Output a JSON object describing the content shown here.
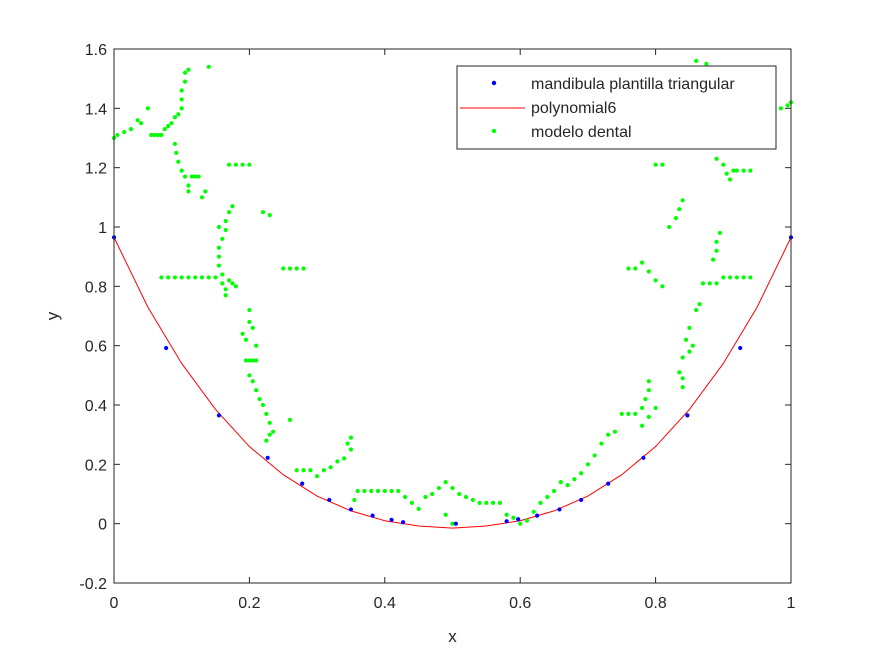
{
  "chart_data": {
    "type": "scatter",
    "xlabel": "x",
    "ylabel": "y",
    "xlim": [
      0,
      1
    ],
    "ylim": [
      -0.2,
      1.6
    ],
    "xticks": [
      0,
      0.2,
      0.4,
      0.6,
      0.8,
      1
    ],
    "yticks": [
      -0.2,
      0,
      0.2,
      0.4,
      0.6,
      0.8,
      1,
      1.2,
      1.4,
      1.6
    ],
    "xtick_labels": [
      "0",
      "0.2",
      "0.4",
      "0.6",
      "0.8",
      "1"
    ],
    "ytick_labels": [
      "-0.2",
      "0",
      "0.2",
      "0.4",
      "0.6",
      "0.8",
      "1",
      "1.2",
      "1.4",
      "1.6"
    ],
    "grid": false,
    "legend_position": "top-right",
    "series": [
      {
        "name": "mandibula plantilla triangular",
        "kind": "points",
        "color": "#0000ff",
        "points": [
          [
            0.0,
            0.965
          ],
          [
            0.077,
            0.592
          ],
          [
            0.155,
            0.365
          ],
          [
            0.227,
            0.222
          ],
          [
            0.278,
            0.135
          ],
          [
            0.318,
            0.08
          ],
          [
            0.35,
            0.048
          ],
          [
            0.382,
            0.027
          ],
          [
            0.41,
            0.013
          ],
          [
            0.427,
            0.005
          ],
          [
            0.505,
            0.0
          ],
          [
            0.58,
            0.008
          ],
          [
            0.597,
            0.015
          ],
          [
            0.625,
            0.027
          ],
          [
            0.658,
            0.048
          ],
          [
            0.69,
            0.08
          ],
          [
            0.73,
            0.135
          ],
          [
            0.782,
            0.222
          ],
          [
            0.847,
            0.365
          ],
          [
            0.925,
            0.592
          ],
          [
            1.0,
            0.965
          ]
        ]
      },
      {
        "name": "polynomial6",
        "kind": "line",
        "color": "#ff0000",
        "points": [
          [
            0.0,
            0.965
          ],
          [
            0.05,
            0.73
          ],
          [
            0.1,
            0.54
          ],
          [
            0.15,
            0.385
          ],
          [
            0.2,
            0.26
          ],
          [
            0.25,
            0.165
          ],
          [
            0.3,
            0.093
          ],
          [
            0.35,
            0.043
          ],
          [
            0.4,
            0.01
          ],
          [
            0.45,
            -0.008
          ],
          [
            0.5,
            -0.015
          ],
          [
            0.55,
            -0.008
          ],
          [
            0.6,
            0.01
          ],
          [
            0.65,
            0.043
          ],
          [
            0.7,
            0.093
          ],
          [
            0.75,
            0.165
          ],
          [
            0.8,
            0.26
          ],
          [
            0.85,
            0.385
          ],
          [
            0.9,
            0.54
          ],
          [
            0.95,
            0.73
          ],
          [
            1.0,
            0.965
          ]
        ]
      },
      {
        "name": "modelo dental",
        "kind": "points",
        "color": "#00ff00",
        "points": [
          [
            0.0,
            1.3
          ],
          [
            0.005,
            1.31
          ],
          [
            0.015,
            1.32
          ],
          [
            0.025,
            1.33
          ],
          [
            0.035,
            1.36
          ],
          [
            0.04,
            1.35
          ],
          [
            0.05,
            1.4
          ],
          [
            0.055,
            1.31
          ],
          [
            0.06,
            1.31
          ],
          [
            0.065,
            1.31
          ],
          [
            0.07,
            1.31
          ],
          [
            0.075,
            1.33
          ],
          [
            0.08,
            1.34
          ],
          [
            0.085,
            1.35
          ],
          [
            0.09,
            1.37
          ],
          [
            0.095,
            1.38
          ],
          [
            0.1,
            1.4
          ],
          [
            0.1,
            1.43
          ],
          [
            0.1,
            1.46
          ],
          [
            0.105,
            1.49
          ],
          [
            0.105,
            1.52
          ],
          [
            0.11,
            1.53
          ],
          [
            0.09,
            1.28
          ],
          [
            0.092,
            1.25
          ],
          [
            0.095,
            1.22
          ],
          [
            0.1,
            1.19
          ],
          [
            0.105,
            1.17
          ],
          [
            0.11,
            1.14
          ],
          [
            0.11,
            1.12
          ],
          [
            0.115,
            1.17
          ],
          [
            0.12,
            1.17
          ],
          [
            0.125,
            1.17
          ],
          [
            0.13,
            1.1
          ],
          [
            0.135,
            1.12
          ],
          [
            0.14,
            1.54
          ],
          [
            0.07,
            0.83
          ],
          [
            0.08,
            0.83
          ],
          [
            0.09,
            0.83
          ],
          [
            0.1,
            0.83
          ],
          [
            0.11,
            0.83
          ],
          [
            0.12,
            0.83
          ],
          [
            0.13,
            0.83
          ],
          [
            0.14,
            0.83
          ],
          [
            0.15,
            0.83
          ],
          [
            0.16,
            0.84
          ],
          [
            0.155,
            0.87
          ],
          [
            0.16,
            0.81
          ],
          [
            0.165,
            0.79
          ],
          [
            0.165,
            0.77
          ],
          [
            0.17,
            0.82
          ],
          [
            0.175,
            0.81
          ],
          [
            0.18,
            0.8
          ],
          [
            0.155,
            0.9
          ],
          [
            0.155,
            0.93
          ],
          [
            0.16,
            0.96
          ],
          [
            0.165,
            0.99
          ],
          [
            0.165,
            1.02
          ],
          [
            0.17,
            1.05
          ],
          [
            0.175,
            1.07
          ],
          [
            0.155,
            1.0
          ],
          [
            0.17,
            1.21
          ],
          [
            0.18,
            1.21
          ],
          [
            0.19,
            1.21
          ],
          [
            0.2,
            1.21
          ],
          [
            0.22,
            1.05
          ],
          [
            0.23,
            1.04
          ],
          [
            0.25,
            0.86
          ],
          [
            0.26,
            0.86
          ],
          [
            0.27,
            0.86
          ],
          [
            0.28,
            0.86
          ],
          [
            0.19,
            0.64
          ],
          [
            0.195,
            0.62
          ],
          [
            0.2,
            0.68
          ],
          [
            0.2,
            0.72
          ],
          [
            0.205,
            0.66
          ],
          [
            0.21,
            0.6
          ],
          [
            0.195,
            0.55
          ],
          [
            0.2,
            0.55
          ],
          [
            0.205,
            0.55
          ],
          [
            0.21,
            0.55
          ],
          [
            0.2,
            0.5
          ],
          [
            0.205,
            0.48
          ],
          [
            0.21,
            0.45
          ],
          [
            0.215,
            0.42
          ],
          [
            0.22,
            0.4
          ],
          [
            0.225,
            0.37
          ],
          [
            0.23,
            0.34
          ],
          [
            0.235,
            0.31
          ],
          [
            0.225,
            0.28
          ],
          [
            0.23,
            0.3
          ],
          [
            0.26,
            0.35
          ],
          [
            0.27,
            0.18
          ],
          [
            0.28,
            0.18
          ],
          [
            0.29,
            0.18
          ],
          [
            0.3,
            0.16
          ],
          [
            0.31,
            0.18
          ],
          [
            0.32,
            0.19
          ],
          [
            0.33,
            0.21
          ],
          [
            0.34,
            0.22
          ],
          [
            0.345,
            0.27
          ],
          [
            0.35,
            0.29
          ],
          [
            0.35,
            0.25
          ],
          [
            0.355,
            0.08
          ],
          [
            0.36,
            0.11
          ],
          [
            0.37,
            0.11
          ],
          [
            0.38,
            0.11
          ],
          [
            0.39,
            0.11
          ],
          [
            0.4,
            0.11
          ],
          [
            0.41,
            0.11
          ],
          [
            0.42,
            0.11
          ],
          [
            0.43,
            0.09
          ],
          [
            0.44,
            0.07
          ],
          [
            0.45,
            0.05
          ],
          [
            0.46,
            0.09
          ],
          [
            0.47,
            0.1
          ],
          [
            0.48,
            0.12
          ],
          [
            0.49,
            0.14
          ],
          [
            0.5,
            0.12
          ],
          [
            0.51,
            0.1
          ],
          [
            0.52,
            0.09
          ],
          [
            0.53,
            0.08
          ],
          [
            0.54,
            0.07
          ],
          [
            0.55,
            0.07
          ],
          [
            0.56,
            0.07
          ],
          [
            0.57,
            0.07
          ],
          [
            0.49,
            0.03
          ],
          [
            0.5,
            0.0
          ],
          [
            0.58,
            0.03
          ],
          [
            0.59,
            0.02
          ],
          [
            0.6,
            0.0
          ],
          [
            0.61,
            0.01
          ],
          [
            0.62,
            0.04
          ],
          [
            0.63,
            0.07
          ],
          [
            0.64,
            0.09
          ],
          [
            0.65,
            0.11
          ],
          [
            0.66,
            0.14
          ],
          [
            0.67,
            0.13
          ],
          [
            0.68,
            0.15
          ],
          [
            0.69,
            0.17
          ],
          [
            0.7,
            0.2
          ],
          [
            0.71,
            0.23
          ],
          [
            0.72,
            0.27
          ],
          [
            0.73,
            0.3
          ],
          [
            0.74,
            0.31
          ],
          [
            0.75,
            0.37
          ],
          [
            0.76,
            0.37
          ],
          [
            0.77,
            0.37
          ],
          [
            0.78,
            0.39
          ],
          [
            0.785,
            0.42
          ],
          [
            0.79,
            0.45
          ],
          [
            0.79,
            0.48
          ],
          [
            0.78,
            0.33
          ],
          [
            0.79,
            0.36
          ],
          [
            0.8,
            0.39
          ],
          [
            0.84,
            0.56
          ],
          [
            0.85,
            0.58
          ],
          [
            0.845,
            0.62
          ],
          [
            0.85,
            0.66
          ],
          [
            0.855,
            0.6
          ],
          [
            0.835,
            0.51
          ],
          [
            0.84,
            0.49
          ],
          [
            0.84,
            0.46
          ],
          [
            0.86,
            0.72
          ],
          [
            0.865,
            0.74
          ],
          [
            0.76,
            0.86
          ],
          [
            0.77,
            0.86
          ],
          [
            0.78,
            0.88
          ],
          [
            0.79,
            0.85
          ],
          [
            0.8,
            0.82
          ],
          [
            0.81,
            0.8
          ],
          [
            0.87,
            0.81
          ],
          [
            0.88,
            0.81
          ],
          [
            0.89,
            0.81
          ],
          [
            0.9,
            0.83
          ],
          [
            0.91,
            0.83
          ],
          [
            0.92,
            0.83
          ],
          [
            0.93,
            0.83
          ],
          [
            0.94,
            0.83
          ],
          [
            0.885,
            0.89
          ],
          [
            0.89,
            0.92
          ],
          [
            0.89,
            0.95
          ],
          [
            0.895,
            0.98
          ],
          [
            0.8,
            1.21
          ],
          [
            0.81,
            1.21
          ],
          [
            0.82,
            1.0
          ],
          [
            0.83,
            1.03
          ],
          [
            0.835,
            1.06
          ],
          [
            0.84,
            1.09
          ],
          [
            0.89,
            1.23
          ],
          [
            0.9,
            1.21
          ],
          [
            0.905,
            1.18
          ],
          [
            0.91,
            1.16
          ],
          [
            0.915,
            1.19
          ],
          [
            0.92,
            1.19
          ],
          [
            0.93,
            1.19
          ],
          [
            0.94,
            1.19
          ],
          [
            0.86,
            1.56
          ],
          [
            0.875,
            1.55
          ],
          [
            0.89,
            1.53
          ],
          [
            0.9,
            1.48
          ],
          [
            0.91,
            1.45
          ],
          [
            0.92,
            1.43
          ],
          [
            0.95,
            1.38
          ],
          [
            0.96,
            1.38
          ],
          [
            0.975,
            1.39
          ],
          [
            0.985,
            1.4
          ],
          [
            0.995,
            1.41
          ],
          [
            1.0,
            1.42
          ]
        ]
      }
    ]
  }
}
